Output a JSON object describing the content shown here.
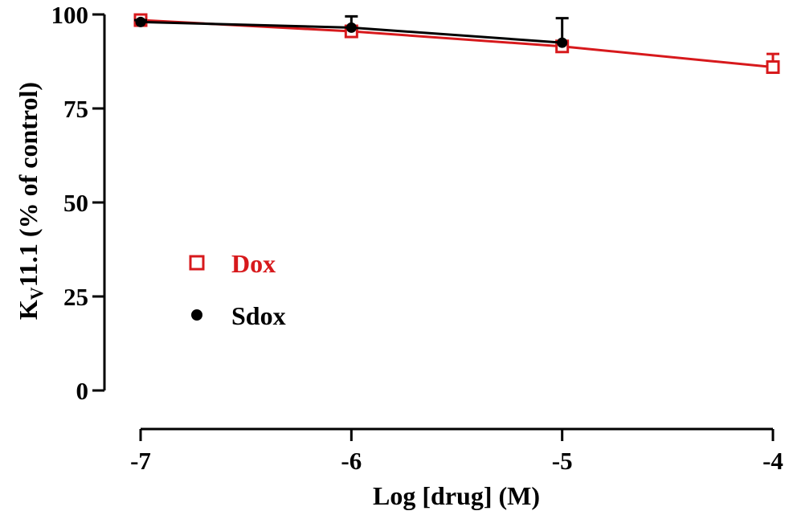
{
  "chart_data": {
    "type": "line",
    "title": "",
    "xlabel": "Log [drug] (M)",
    "ylabel": {
      "main": "K",
      "subscript": "V",
      "rest": "11.1 (% of control)"
    },
    "xlim": [
      -7,
      -4
    ],
    "ylim": [
      0,
      100
    ],
    "x_ticks": [
      -7,
      -6,
      -5,
      -4
    ],
    "x_tick_labels": [
      "-7",
      "-6",
      "-5",
      "-4"
    ],
    "y_ticks": [
      0,
      25,
      50,
      75,
      100
    ],
    "y_tick_labels": [
      "0",
      "25",
      "50",
      "75",
      "100"
    ],
    "grid": false,
    "legend_position": "center-left",
    "series": [
      {
        "name": "Dox",
        "color": "#d7191c",
        "marker": "open-square",
        "x": [
          -7,
          -6,
          -5,
          -4
        ],
        "y": [
          98.5,
          95.5,
          91.5,
          86.0
        ],
        "error": [
          0.5,
          0.5,
          1.0,
          3.5
        ]
      },
      {
        "name": "Sdox",
        "color": "#000000",
        "marker": "filled-circle",
        "x": [
          -7,
          -6,
          -5
        ],
        "y": [
          98.0,
          96.5,
          92.5
        ],
        "error": [
          0.5,
          3.0,
          6.5
        ]
      }
    ]
  }
}
